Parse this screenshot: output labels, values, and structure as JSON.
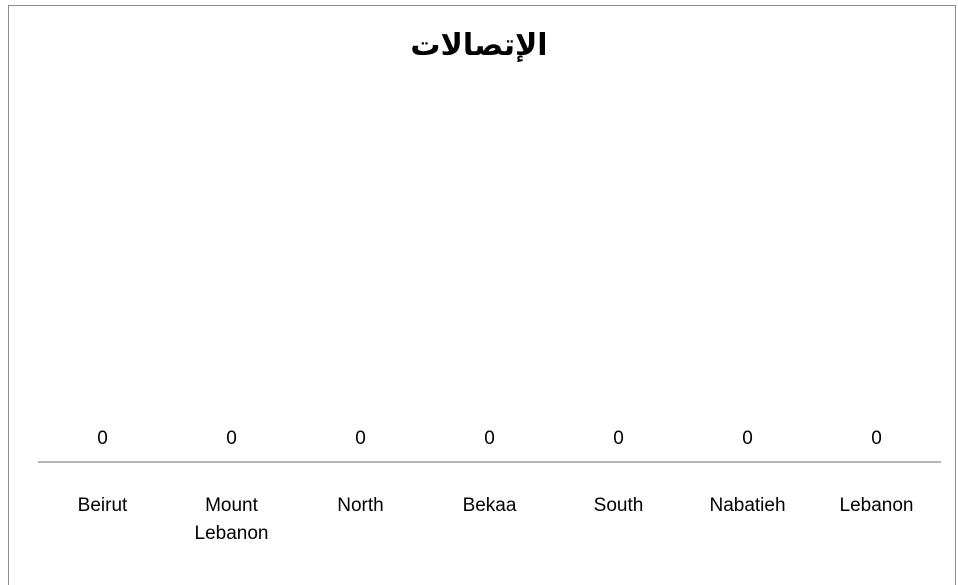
{
  "chart_data": {
    "type": "bar",
    "title": "الإتصالات",
    "categories": [
      "Beirut",
      "Mount Lebanon",
      "North",
      "Bekaa",
      "South",
      "Nabatieh",
      "Lebanon"
    ],
    "category_lines": [
      [
        "Beirut"
      ],
      [
        "Mount",
        "Lebanon"
      ],
      [
        "North"
      ],
      [
        "Bekaa"
      ],
      [
        "South"
      ],
      [
        "Nabatieh"
      ],
      [
        "Lebanon"
      ]
    ],
    "values": [
      0,
      0,
      0,
      0,
      0,
      0,
      0
    ],
    "xlabel": "",
    "ylabel": "",
    "grid": false,
    "legend": "none"
  }
}
